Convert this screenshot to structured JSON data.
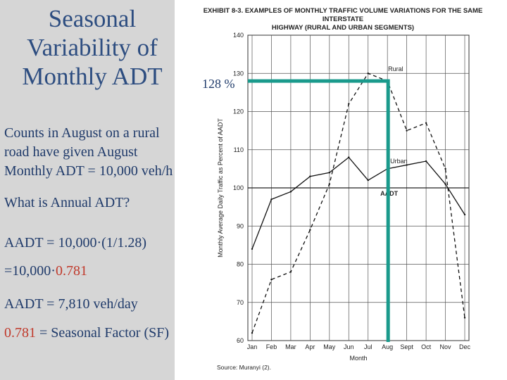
{
  "slide": {
    "title_lines": [
      "Seasonal",
      "Variability of",
      "Monthly ADT"
    ],
    "counts_lines": [
      "Counts in August on a rural",
      "road have given August",
      "Monthly ADT = 10,000 veh/h"
    ],
    "question": "What is Annual ADT?",
    "calc1": "AADT = 10,000·(1/1.28)",
    "calc2_prefix": "=10,000·",
    "calc2_value": "0.781",
    "calc3": "AADT = 7,810 veh/day",
    "sf_value": "0.781",
    "sf_text": " = Seasonal Factor (SF)",
    "pct_label": "128 %"
  },
  "colors": {
    "left_panel": "#d6d6d6",
    "text": "#1f3a6a",
    "highlight_red": "#c0392b",
    "annotation_teal": "#1a9a8c"
  },
  "chart_data": {
    "type": "line",
    "title_lines": [
      "EXHIBIT 8-3.  EXAMPLES OF MONTHLY TRAFFIC VOLUME VARIATIONS FOR THE SAME INTERSTATE",
      "HIGHWAY (RURAL AND URBAN SEGMENTS)"
    ],
    "categories": [
      "Jan",
      "Feb",
      "Mar",
      "Apr",
      "May",
      "Jun",
      "Jul",
      "Aug",
      "Sept",
      "Oct",
      "Nov",
      "Dec"
    ],
    "series": [
      {
        "name": "Rural",
        "values": [
          62,
          76,
          78,
          89,
          101,
          122,
          130,
          128,
          115,
          117,
          105,
          66
        ],
        "style": "dashed"
      },
      {
        "name": "Urban",
        "values": [
          84,
          97,
          99,
          103,
          104,
          108,
          102,
          105,
          106,
          107,
          101,
          93
        ],
        "style": "solid"
      }
    ],
    "reference_line": {
      "name": "AADT",
      "value": 100
    },
    "xlabel": "Month",
    "ylabel": "Monthly Average Daily Traffic as Percent of AADT",
    "ylim": [
      60,
      140
    ],
    "yticks": [
      60,
      70,
      80,
      90,
      100,
      110,
      120,
      130,
      140
    ],
    "grid": true,
    "annotation": {
      "month": "Aug",
      "value": 128
    },
    "source": "Source: Muranyi (2)."
  }
}
